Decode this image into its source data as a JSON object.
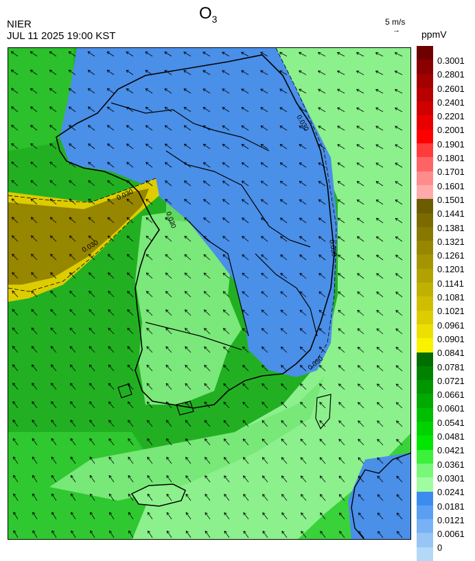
{
  "header": {
    "source": "NIER",
    "timestamp": "JUL 11 2025 19:00 KST",
    "title_main": "O",
    "title_sub": "3",
    "vector_scale_label": "5 m/s",
    "unit": "ppmV"
  },
  "legend": {
    "colors": [
      "#6e0000",
      "#8b0000",
      "#a30000",
      "#b90000",
      "#d10000",
      "#e80000",
      "#ff0000",
      "#ff3c3c",
      "#ff6464",
      "#ff8c8c",
      "#ffaaaa",
      "#6b5c00",
      "#7a6a00",
      "#887800",
      "#968600",
      "#a49400",
      "#b2a200",
      "#c0b000",
      "#cfbe00",
      "#ddcc00",
      "#ece000",
      "#fbf200",
      "#006e00",
      "#008200",
      "#009600",
      "#00aa00",
      "#00be00",
      "#00d200",
      "#00e600",
      "#3cf03c",
      "#78f878",
      "#a0fca0",
      "#3c8cf0",
      "#5a9ff2",
      "#78b2f4",
      "#96c5f6",
      "#b4d8f8"
    ],
    "labels": [
      "0.3001",
      "0.2801",
      "0.2601",
      "0.2401",
      "0.2201",
      "0.2001",
      "0.1901",
      "0.1801",
      "0.1701",
      "0.1601",
      "0.1501",
      "0.1441",
      "0.1381",
      "0.1321",
      "0.1261",
      "0.1201",
      "0.1141",
      "0.1081",
      "0.1021",
      "0.0961",
      "0.0901",
      "0.0841",
      "0.0781",
      "0.0721",
      "0.0661",
      "0.0601",
      "0.0541",
      "0.0481",
      "0.0421",
      "0.0361",
      "0.0301",
      "0.0241",
      "0.0181",
      "0.0121",
      "0.0061",
      "0"
    ]
  },
  "map": {
    "contour_label": "0.030",
    "region_colors": {
      "sea_green": "#3ccc3c",
      "sea_dark": "#22aa22",
      "light_green": "#8cf08c",
      "blue": "#4a8fe8",
      "olive": "#968600",
      "yellow": "#ddcc00"
    }
  }
}
